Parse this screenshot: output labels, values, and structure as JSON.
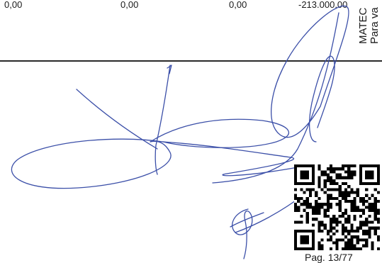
{
  "values": [
    "0,00",
    "0,00",
    "0,00",
    "-213.000,00"
  ],
  "side_text": [
    "MATEC",
    "Para va"
  ],
  "signature_color": "#3b4fa8",
  "page": "Pag. 13/77"
}
